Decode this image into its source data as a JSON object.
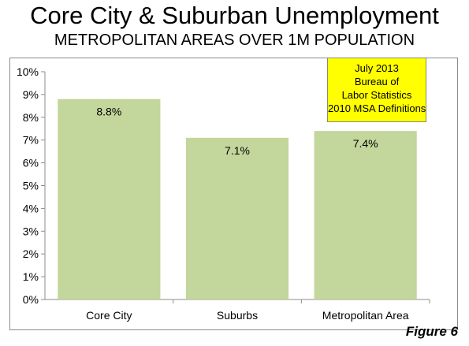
{
  "chart_data": {
    "type": "bar",
    "title": "Core City & Suburban Unemployment",
    "subtitle": "METROPOLITAN AREAS OVER 1M POPULATION",
    "categories": [
      "Core City",
      "Suburbs",
      "Metropolitan Area"
    ],
    "values": [
      8.8,
      7.1,
      7.4
    ],
    "data_labels": [
      "8.8%",
      "7.1%",
      "7.4%"
    ],
    "y_ticks": [
      "0%",
      "1%",
      "2%",
      "3%",
      "4%",
      "5%",
      "6%",
      "7%",
      "8%",
      "9%",
      "10%"
    ],
    "ylim": [
      0,
      10
    ],
    "xlabel": "",
    "ylabel": "",
    "grid": false,
    "legend": "none",
    "bar_color": "#c3d69b",
    "annotation": [
      "July 2013",
      "Bureau of",
      "Labor Statistics",
      "2010 MSA Definitions"
    ]
  },
  "figure_label": "Figure 6",
  "colors": {
    "annotation_bg": "#ffff00",
    "axis": "#8c8c8c"
  }
}
